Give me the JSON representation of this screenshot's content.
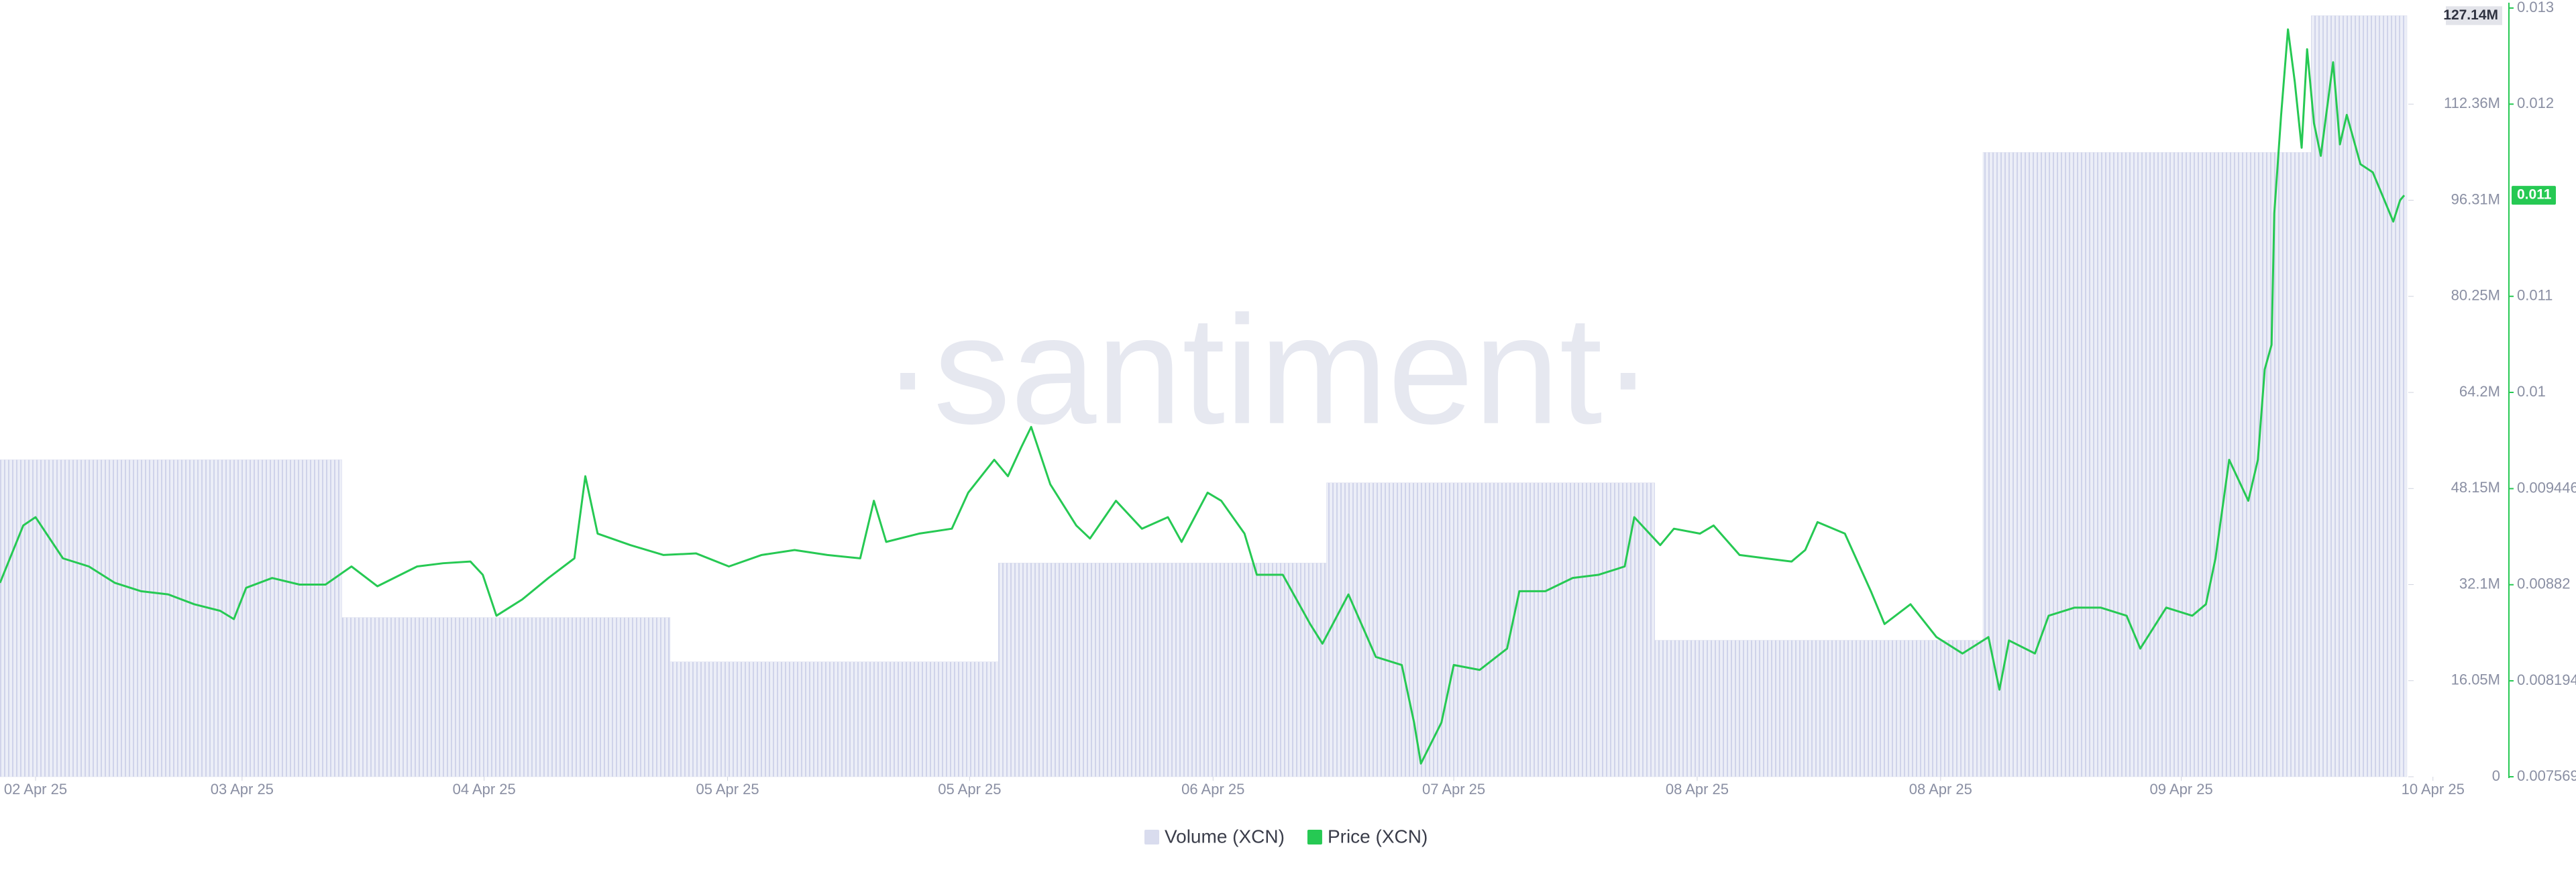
{
  "chart_data": {
    "type": "combo",
    "watermark": "·santiment·",
    "xlim": [
      0,
      176
    ],
    "xticks": [
      {
        "value": 2.6,
        "label": "02 Apr 25"
      },
      {
        "value": 17.7,
        "label": "03 Apr 25"
      },
      {
        "value": 35.4,
        "label": "04 Apr 25"
      },
      {
        "value": 53.2,
        "label": "05 Apr 25"
      },
      {
        "value": 70.9,
        "label": "05 Apr 25"
      },
      {
        "value": 88.7,
        "label": "06 Apr 25"
      },
      {
        "value": 106.3,
        "label": "07 Apr 25"
      },
      {
        "value": 124.1,
        "label": "08 Apr 25"
      },
      {
        "value": 141.9,
        "label": "08 Apr 25"
      },
      {
        "value": 159.5,
        "label": "09 Apr 25"
      },
      {
        "value": 177.9,
        "label": "10 Apr 25"
      }
    ],
    "ylim": [
      0,
      128.41
    ],
    "yticks": [
      0,
      {
        "value": 16.05,
        "label": "16.05M"
      },
      {
        "value": 32.1,
        "label": "32.1M"
      },
      {
        "value": 48.15,
        "label": "48.15M"
      },
      {
        "value": 64.2,
        "label": "64.2M"
      },
      {
        "value": 80.25,
        "label": "80.25M"
      },
      {
        "value": 96.31,
        "label": "96.31M"
      },
      {
        "value": 112.36,
        "label": "112.36M"
      }
    ],
    "y2lim": [
      0.007569,
      0.012577
    ],
    "y2ticks": [
      0.007569,
      0.008194,
      0.00882,
      0.009446,
      {
        "value": 0.010073,
        "label": "0.01"
      },
      {
        "value": 0.010699,
        "label": "0.011"
      },
      {
        "value": 0.011951,
        "label": "0.012"
      },
      {
        "value": 0.012577,
        "label": "0.013"
      }
    ],
    "series": [
      {
        "name": "Volume (XCN)",
        "type": "bar",
        "color": "#d9dcee",
        "bins": [
          0,
          25,
          49,
          73,
          97,
          121,
          145,
          169,
          176
        ],
        "values": [
          52.95,
          26.6,
          19.2,
          35.7,
          49.1,
          22.8,
          104.3,
          127.14
        ],
        "last_value_label": "127.14M"
      },
      {
        "name": "Price (XCN)",
        "type": "line",
        "axis": "y2",
        "color": "#26c953",
        "x": [
          0,
          1.7,
          2.6,
          4.6,
          6.5,
          8.4,
          10.3,
          12.3,
          14.2,
          16.1,
          17.1,
          18.0,
          19.9,
          21.9,
          23.8,
          25.7,
          27.6,
          30.5,
          32.4,
          34.4,
          35.3,
          36.3,
          38.2,
          40.1,
          42.0,
          42.8,
          43.7,
          46.1,
          48.5,
          50.9,
          53.3,
          55.7,
          58.1,
          60.5,
          62.9,
          63.9,
          64.8,
          67.2,
          69.6,
          70.8,
          72.7,
          73.7,
          74.7,
          75.4,
          76.8,
          78.7,
          79.7,
          81.6,
          83.5,
          85.4,
          86.4,
          88.3,
          89.3,
          91.0,
          91.9,
          93.8,
          95.8,
          96.7,
          98.6,
          100.6,
          102.5,
          103.4,
          103.9,
          105.4,
          106.3,
          108.2,
          110.2,
          111.1,
          113.0,
          115.0,
          116.9,
          118.8,
          119.5,
          121.4,
          122.4,
          124.3,
          125.3,
          127.2,
          129.1,
          131.0,
          132.0,
          132.9,
          134.9,
          136.8,
          137.8,
          139.7,
          141.6,
          143.5,
          145.4,
          146.2,
          146.9,
          148.8,
          149.8,
          151.7,
          153.6,
          155.5,
          156.5,
          158.4,
          160.3,
          161.3,
          162.0,
          163.0,
          164.4,
          165.1,
          165.6,
          166.1,
          166.3,
          166.8,
          167.3,
          167.8,
          168.3,
          168.7,
          169.2,
          169.7,
          170.6,
          171.1,
          171.6,
          172.6,
          173.5,
          174.5,
          175.0,
          175.5,
          175.8
        ],
        "values": [
          0.008832,
          0.009206,
          0.00926,
          0.008992,
          0.008939,
          0.008832,
          0.008778,
          0.008757,
          0.008693,
          0.00865,
          0.008596,
          0.0088,
          0.008864,
          0.008821,
          0.008821,
          0.008939,
          0.00881,
          0.008939,
          0.00896,
          0.008971,
          0.008885,
          0.008618,
          0.008725,
          0.008864,
          0.008992,
          0.009527,
          0.009153,
          0.009078,
          0.009014,
          0.009024,
          0.008939,
          0.009014,
          0.009046,
          0.009014,
          0.008992,
          0.009367,
          0.009099,
          0.009153,
          0.009185,
          0.00942,
          0.009634,
          0.009527,
          0.00972,
          0.009848,
          0.009474,
          0.009206,
          0.009121,
          0.009367,
          0.009185,
          0.00926,
          0.009099,
          0.00942,
          0.009367,
          0.009153,
          0.008885,
          0.008885,
          0.008564,
          0.008436,
          0.008757,
          0.00835,
          0.008297,
          0.007922,
          0.007655,
          0.007922,
          0.008297,
          0.008265,
          0.008404,
          0.008778,
          0.008778,
          0.008864,
          0.008885,
          0.008939,
          0.00926,
          0.009078,
          0.009185,
          0.009153,
          0.009206,
          0.009014,
          0.008992,
          0.008971,
          0.009046,
          0.009228,
          0.009153,
          0.008778,
          0.008564,
          0.008693,
          0.008479,
          0.008372,
          0.008479,
          0.008136,
          0.008457,
          0.008372,
          0.008618,
          0.008671,
          0.008671,
          0.008618,
          0.008404,
          0.008671,
          0.008618,
          0.008693,
          0.008992,
          0.009634,
          0.009367,
          0.009634,
          0.010223,
          0.010383,
          0.011239,
          0.011881,
          0.012438,
          0.012095,
          0.011667,
          0.012309,
          0.011828,
          0.011614,
          0.012224,
          0.011689,
          0.011881,
          0.01156,
          0.011507,
          0.011293,
          0.011186,
          0.011325,
          0.011357
        ],
        "last_value_label": "0.011"
      }
    ]
  }
}
